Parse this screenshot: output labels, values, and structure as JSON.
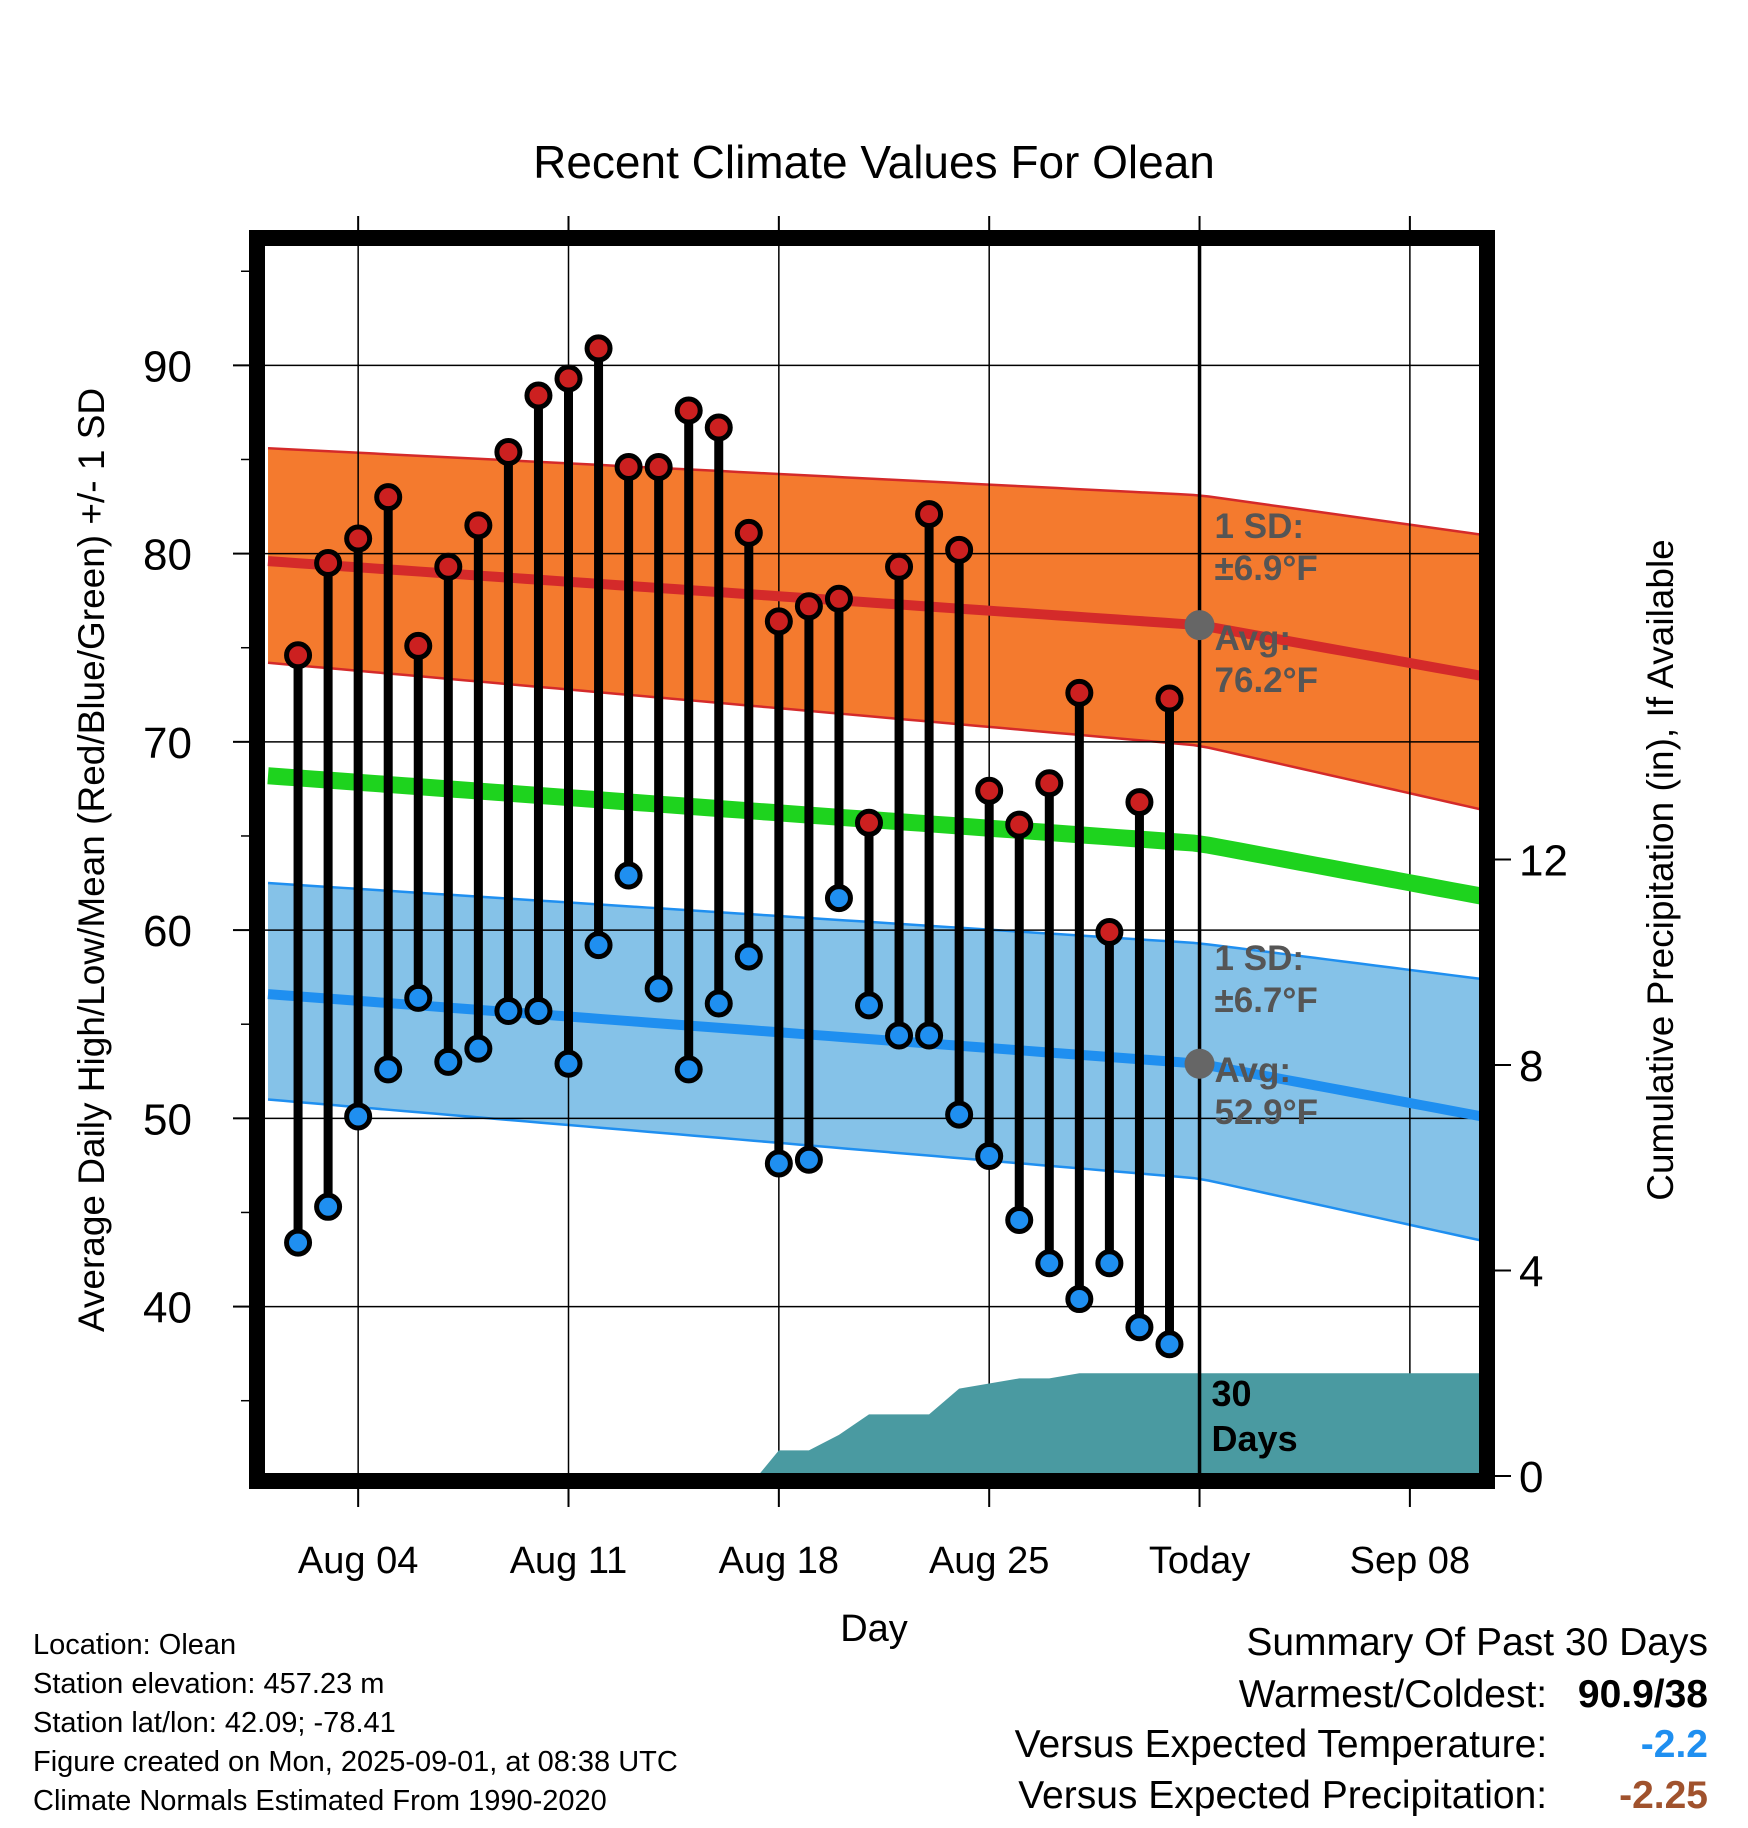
{
  "chart_data": {
    "type": "line",
    "title": "Recent Climate Values For Olean",
    "xlabel": "Day",
    "ylabel_left": "Average Daily High/Low/Mean (Red/Blue/Green) +/- 1 SD",
    "ylabel_right": "Cumulative Precipitation (in), If Available",
    "x_ticks": [
      "Aug 04",
      "Aug 11",
      "Aug 18",
      "Aug 25",
      "Today",
      "Sep 08"
    ],
    "x_tick_days": [
      4,
      11,
      18,
      25,
      32,
      39
    ],
    "xlim_days": [
      0.8,
      41.4
    ],
    "ylim_left": [
      31,
      96.5
    ],
    "y_ticks_left": [
      40,
      50,
      60,
      70,
      80,
      90
    ],
    "ylim_right": [
      0,
      24
    ],
    "y_ticks_right": [
      0,
      4,
      8,
      12
    ],
    "grid": true,
    "days": [
      2,
      3,
      4,
      5,
      6,
      7,
      8,
      9,
      10,
      11,
      12,
      13,
      14,
      15,
      16,
      17,
      18,
      19,
      20,
      21,
      22,
      23,
      24,
      25,
      26,
      27,
      28,
      29,
      30,
      31
    ],
    "highs": [
      74.6,
      79.5,
      80.8,
      83.0,
      75.1,
      79.3,
      81.5,
      85.4,
      88.4,
      89.3,
      90.9,
      84.6,
      84.6,
      87.6,
      86.7,
      81.1,
      76.4,
      77.2,
      77.6,
      65.7,
      79.3,
      82.1,
      80.2,
      67.4,
      65.6,
      67.8,
      72.6,
      59.9,
      66.8,
      72.3
    ],
    "lows": [
      43.4,
      45.3,
      50.1,
      52.6,
      56.4,
      53.0,
      53.7,
      55.7,
      55.7,
      52.9,
      59.2,
      62.9,
      56.9,
      52.6,
      56.1,
      58.6,
      47.6,
      47.8,
      61.7,
      56.0,
      54.4,
      54.4,
      50.2,
      48.0,
      44.6,
      42.3,
      40.4,
      42.3,
      38.9,
      38.0
    ],
    "normal_high": {
      "days": [
        1,
        32,
        41.4
      ],
      "values": [
        79.6,
        76.2,
        73.5
      ],
      "sd_upper": [
        85.6,
        83.1,
        81.0
      ],
      "sd_lower": [
        74.2,
        69.8,
        66.4
      ]
    },
    "normal_low": {
      "days": [
        1,
        32,
        41.4
      ],
      "values": [
        56.6,
        52.9,
        50.1
      ],
      "sd_upper": [
        62.5,
        59.3,
        57.4
      ],
      "sd_lower": [
        51.0,
        46.8,
        43.5
      ]
    },
    "normal_mean": {
      "days": [
        1,
        32,
        41.4
      ],
      "values": [
        68.2,
        64.6,
        61.8
      ]
    },
    "precip_cumulative": {
      "days": [
        1,
        17.3,
        18,
        19,
        20,
        21,
        22,
        23,
        24,
        25,
        26,
        27,
        28,
        29,
        32,
        41.4
      ],
      "values": [
        0,
        0,
        0.5,
        0.5,
        0.8,
        1.2,
        1.2,
        1.2,
        1.7,
        1.8,
        1.9,
        1.9,
        2.0,
        2.0,
        2.0,
        2.0
      ]
    },
    "today_marker": {
      "day": 32,
      "label": "30\nDays"
    },
    "annotations": {
      "high_sd": "1 SD:\n±6.9°F",
      "high_avg": "Avg:\n76.2°F",
      "low_sd": "1 SD:\n±6.7°F",
      "low_avg": "Avg:\n52.9°F",
      "days_line1": "30",
      "days_line2": "Days"
    },
    "colors": {
      "high_band": "#f47a2e",
      "high_line": "#d42a2a",
      "low_band": "#85c2e8",
      "low_line": "#1f8ff0",
      "mean_line": "#1ed31e",
      "precip": "#4a9aa1",
      "high_dot": "#cc2020",
      "low_dot": "#1f8ff0",
      "annotation_text": "#555555",
      "avg_dot": "#666666"
    }
  },
  "info": {
    "location": "Location: Olean",
    "elevation": "Station elevation: 457.23 m",
    "latlon": "Station lat/lon: 42.09; -78.41",
    "created": "Figure created on Mon, 2025-09-01, at 08:38 UTC",
    "normals": "Climate Normals Estimated From 1990-2020"
  },
  "summary": {
    "title": "Summary Of Past 30 Days",
    "warm_cold_label": "Warmest/Coldest:",
    "warm_cold_value": "90.9/38",
    "temp_label": "Versus Expected Temperature:",
    "temp_value": "-2.2",
    "temp_color": "#1f8ff0",
    "precip_label": "Versus Expected Precipitation:",
    "precip_value": "-2.25",
    "precip_color": "#a0522d"
  }
}
